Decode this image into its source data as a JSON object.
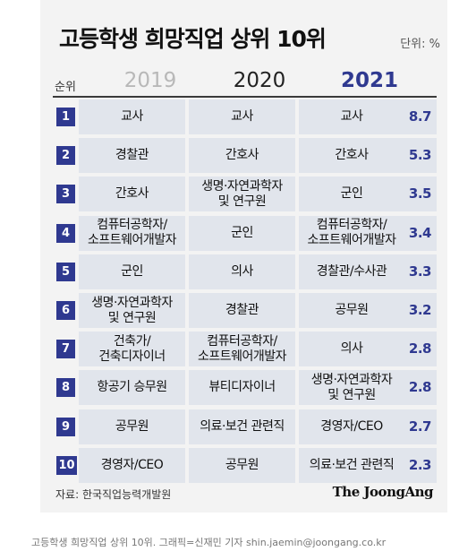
{
  "title": "고등학생 희망직업 상위 10위",
  "unit": "단위: %",
  "header": {
    "rank": "순위",
    "years": [
      "2019",
      "2020",
      "2021"
    ]
  },
  "chart_data": {
    "type": "table",
    "title": "고등학생 희망직업 상위 10위",
    "unit": "%",
    "columns": [
      "순위",
      "2019",
      "2020",
      "2021",
      "2021 %"
    ],
    "rows": [
      {
        "rank": "1",
        "y2019": "교사",
        "y2020": "교사",
        "y2021": "교사",
        "pct": 8.7
      },
      {
        "rank": "2",
        "y2019": "경찰관",
        "y2020": "간호사",
        "y2021": "간호사",
        "pct": 5.3
      },
      {
        "rank": "3",
        "y2019": "간호사",
        "y2020": "생명·자연과학자 및 연구원",
        "y2021": "군인",
        "pct": 3.5
      },
      {
        "rank": "4",
        "y2019": "컴퓨터공학자/ 소프트웨어개발자",
        "y2020": "군인",
        "y2021": "컴퓨터공학자/ 소프트웨어개발자",
        "pct": 3.4
      },
      {
        "rank": "5",
        "y2019": "군인",
        "y2020": "의사",
        "y2021": "경찰관/수사관",
        "pct": 3.3
      },
      {
        "rank": "6",
        "y2019": "생명·자연과학자 및 연구원",
        "y2020": "경찰관",
        "y2021": "공무원",
        "pct": 3.2
      },
      {
        "rank": "7",
        "y2019": "건축가/ 건축디자이너",
        "y2020": "컴퓨터공학자/ 소프트웨어개발자",
        "y2021": "의사",
        "pct": 2.8
      },
      {
        "rank": "8",
        "y2019": "항공기 승무원",
        "y2020": "뷰티디자이너",
        "y2021": "생명·자연과학자 및 연구원",
        "pct": 2.8
      },
      {
        "rank": "9",
        "y2019": "공무원",
        "y2020": "의료·보건 관련직",
        "y2021": "경영자/CEO",
        "pct": 2.7
      },
      {
        "rank": "10",
        "y2019": "경영자/CEO",
        "y2020": "공무원",
        "y2021": "의료·보건 관련직",
        "pct": 2.3
      }
    ]
  },
  "source": "자료: 한국직업능력개발원",
  "brand": "The JoongAng",
  "caption": "고등학생 희망직업 상위 10위. 그래픽=신재민 기자 shin.jaemin@joongang.co.kr",
  "colors": {
    "accent": "#2f3990",
    "cell": "#e1e5ec",
    "card": "#f3f3f3",
    "year2019": "#b8b8b8"
  }
}
